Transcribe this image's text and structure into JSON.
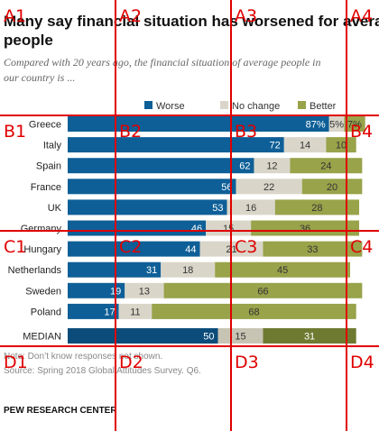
{
  "chart_data": {
    "type": "bar",
    "stacked": true,
    "orientation": "horizontal",
    "title": "Many say financial situation has worsened for average people",
    "subtitle": "Compared with 20 years ago, the financial situation of average people in our country is ...",
    "legend_position": "top",
    "categories": [
      "Greece",
      "Italy",
      "Spain",
      "France",
      "UK",
      "Germany",
      "Hungary",
      "Netherlands",
      "Sweden",
      "Poland",
      "MEDIAN"
    ],
    "series": [
      {
        "name": "Worse",
        "values": [
          87,
          72,
          62,
          56,
          53,
          46,
          44,
          31,
          19,
          17,
          50
        ],
        "labels": [
          "87%",
          "72",
          "62",
          "56",
          "53",
          "46",
          "44",
          "31",
          "19",
          "17",
          "50"
        ]
      },
      {
        "name": "No change",
        "values": [
          5,
          14,
          12,
          22,
          16,
          15,
          21,
          18,
          13,
          11,
          15
        ],
        "labels": [
          "5%",
          "14",
          "12",
          "22",
          "16",
          "15",
          "21",
          "18",
          "13",
          "11",
          "15"
        ]
      },
      {
        "name": "Better",
        "values": [
          7,
          10,
          24,
          20,
          28,
          36,
          33,
          45,
          66,
          68,
          31
        ],
        "labels": [
          "7%",
          "10",
          "24",
          "20",
          "28",
          "36",
          "33",
          "45",
          "66",
          "68",
          "31"
        ]
      }
    ],
    "colors": {
      "worse": "#0e5f97",
      "no_change": "#d9d6c9",
      "better": "#98a34a",
      "median_worse": "#0b4c7a",
      "median_no_change": "#c8c4b4",
      "median_better": "#6f7a31"
    },
    "notes": [
      "Note: Don’t know responses not shown.",
      "Source: Spring 2018 Global Attitudes Survey. Q6."
    ],
    "source_label": "PEW RESEARCH CENTER"
  },
  "grid_overlay": {
    "color": "#e00000",
    "labels": [
      "A1",
      "A2",
      "A3",
      "A4",
      "B1",
      "B2",
      "B3",
      "B4",
      "C1",
      "C2",
      "C3",
      "C4",
      "D1",
      "D2",
      "D3",
      "D4"
    ]
  }
}
